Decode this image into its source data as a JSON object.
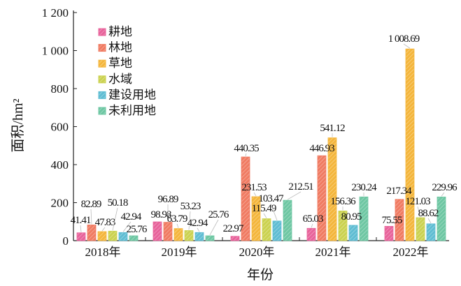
{
  "chart_data": {
    "type": "bar",
    "title": "",
    "xlabel": "年份",
    "ylabel": "面积/hm²",
    "ylim": [
      0,
      1200
    ],
    "yticks": [
      "0",
      "200",
      "400",
      "600",
      "800",
      "1 000",
      "1 200"
    ],
    "categories": [
      "2018年",
      "2019年",
      "2020年",
      "2021年",
      "2022年"
    ],
    "legend_position": "top-left",
    "series": [
      {
        "name": "耕地",
        "color": "#e8639b",
        "values": [
          41.41,
          98.98,
          22.97,
          65.03,
          75.55
        ],
        "labels": [
          "41.41",
          "98.98",
          "22.97",
          "65.03",
          "75.55"
        ]
      },
      {
        "name": "林地",
        "color": "#f07b62",
        "values": [
          82.89,
          96.89,
          440.35,
          446.93,
          217.34
        ],
        "labels": [
          "82.89",
          "96.89",
          "440.35",
          "446.93",
          "217.34"
        ]
      },
      {
        "name": "草地",
        "color": "#f4b63c",
        "values": [
          47.83,
          63.79,
          231.53,
          541.12,
          1008.69
        ],
        "labels": [
          "47.83",
          "63.79",
          "231.53",
          "541.12",
          "1 008.69"
        ]
      },
      {
        "name": "水域",
        "color": "#cbd250",
        "values": [
          50.18,
          53.23,
          115.49,
          156.36,
          121.03
        ],
        "labels": [
          "50.18",
          "53.23",
          "115.49",
          "156.36",
          "121.03"
        ]
      },
      {
        "name": "建设用地",
        "color": "#5fbdd3",
        "values": [
          42.94,
          42.94,
          103.47,
          80.95,
          88.62
        ],
        "labels": [
          "42.94",
          "42.94",
          "103.47",
          "80.95",
          "88.62"
        ]
      },
      {
        "name": "未利用地",
        "color": "#6ec7a3",
        "values": [
          25.76,
          25.76,
          212.51,
          230.24,
          229.96
        ],
        "labels": [
          "25.76",
          "25.76",
          "212.51",
          "230.24",
          "229.96"
        ]
      }
    ]
  }
}
